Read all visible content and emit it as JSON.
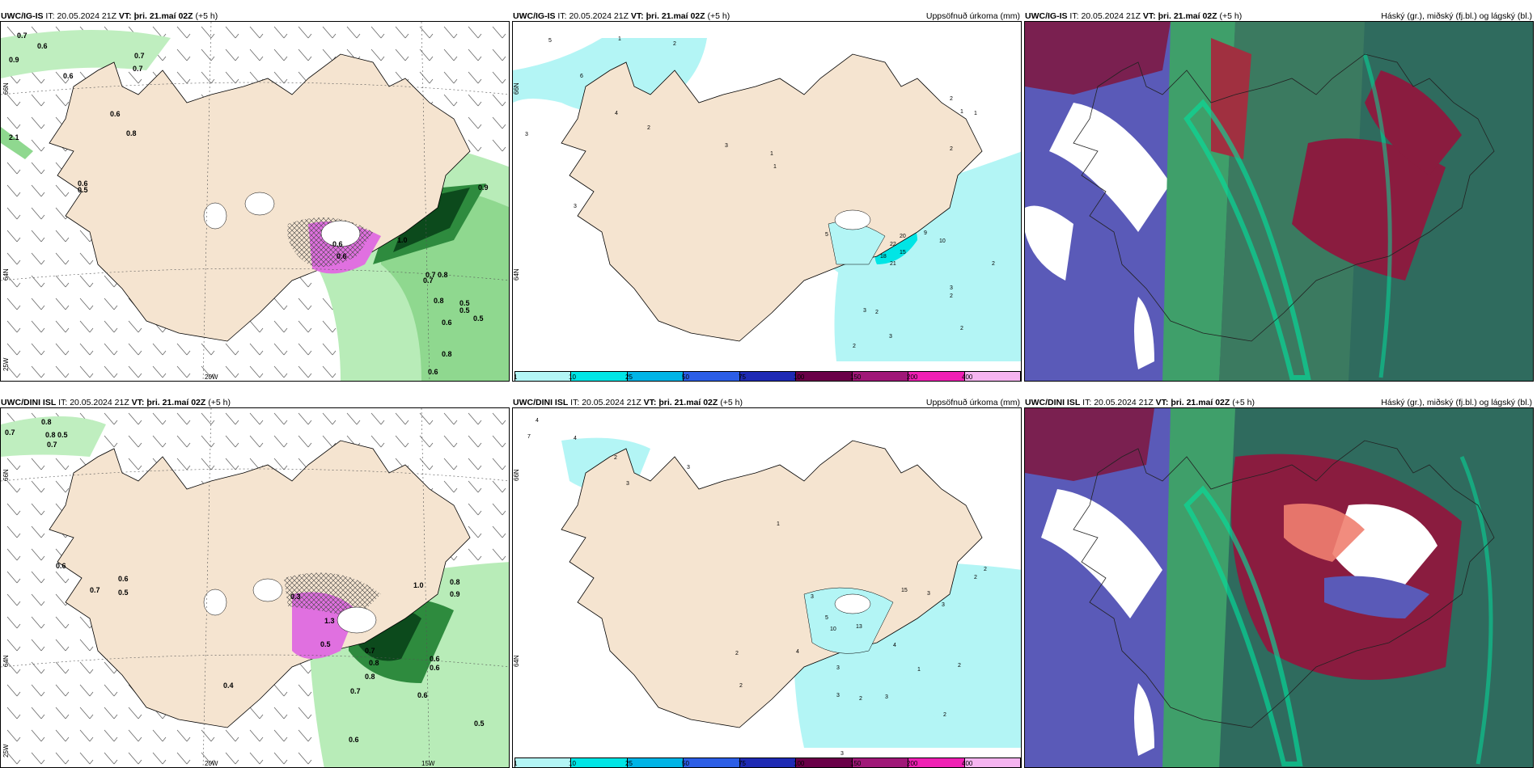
{
  "rows": [
    {
      "model": "UWC/IG-IS",
      "it_label": "IT:",
      "it_value": "20.05.2024 21Z",
      "vt_label": "VT:",
      "vt_value": "þri. 21.maí 02Z",
      "lead": "(+5 h)"
    },
    {
      "model": "UWC/DINI ISL",
      "it_label": "IT:",
      "it_value": "20.05.2024 21Z",
      "vt_label": "VT:",
      "vt_value": "þri. 21.maí 02Z",
      "lead": "(+5 h)"
    }
  ],
  "titles": {
    "precip": "Uppsöfnuð úrkoma (mm)",
    "clouds": "Háský (gr.), miðský (fj.bl.) og lágský (bl.)"
  },
  "axes": {
    "lat_top": "66N",
    "lat_mid": "64N",
    "lat_bot": "25W",
    "lon_20": "20W",
    "lon_15": "15W"
  },
  "colorbar": {
    "ticks": [
      "1",
      "10",
      "25",
      "50",
      "75",
      "100",
      "150",
      "200",
      "400"
    ],
    "colors": [
      "#b3f5f5",
      "#00e5e5",
      "#00b4e6",
      "#2c5ee6",
      "#1e2ab4",
      "#6a0048",
      "#a01878",
      "#f020b4",
      "#f5b4f0"
    ]
  },
  "vis_values": {
    "a": [
      "0.7",
      "0.6",
      "0.6",
      "0.7",
      "0.9",
      "0.7",
      "0.6",
      "0.6",
      "0.8",
      "0.5",
      "0.6",
      "0.9",
      "0.7",
      "0.8",
      "0.8",
      "0.5",
      "0.5",
      "0.6",
      "0.8",
      "0.6",
      "0.7",
      "0.5",
      "0.6",
      "1.0",
      "2.1"
    ],
    "b": [
      "0.8",
      "0.7",
      "0.8",
      "0.5",
      "0.7",
      "0.6",
      "0.7",
      "0.5",
      "0.6",
      "0.8",
      "0.9",
      "0.8",
      "1.0",
      "0.7",
      "0.8",
      "0.6",
      "0.6",
      "0.7",
      "0.6",
      "0.5",
      "0.4",
      "0.5",
      "0.3",
      "0.6",
      "1.3"
    ]
  },
  "precip_values": {
    "a": [
      "5",
      "1",
      "2",
      "6",
      "4",
      "3",
      "2",
      "1",
      "1",
      "3",
      "2",
      "1",
      "2",
      "1",
      "3",
      "9",
      "10",
      "20",
      "22",
      "18",
      "15",
      "21",
      "5",
      "3",
      "2",
      "2",
      "3",
      "2",
      "2",
      "2",
      "3"
    ],
    "b": [
      "4",
      "7",
      "4",
      "3",
      "2",
      "1",
      "3",
      "2",
      "2",
      "4",
      "3",
      "15",
      "5",
      "10",
      "13",
      "3",
      "3",
      "2",
      "2",
      "4",
      "1",
      "3",
      "3",
      "2",
      "2",
      "3",
      "2",
      "3"
    ]
  }
}
